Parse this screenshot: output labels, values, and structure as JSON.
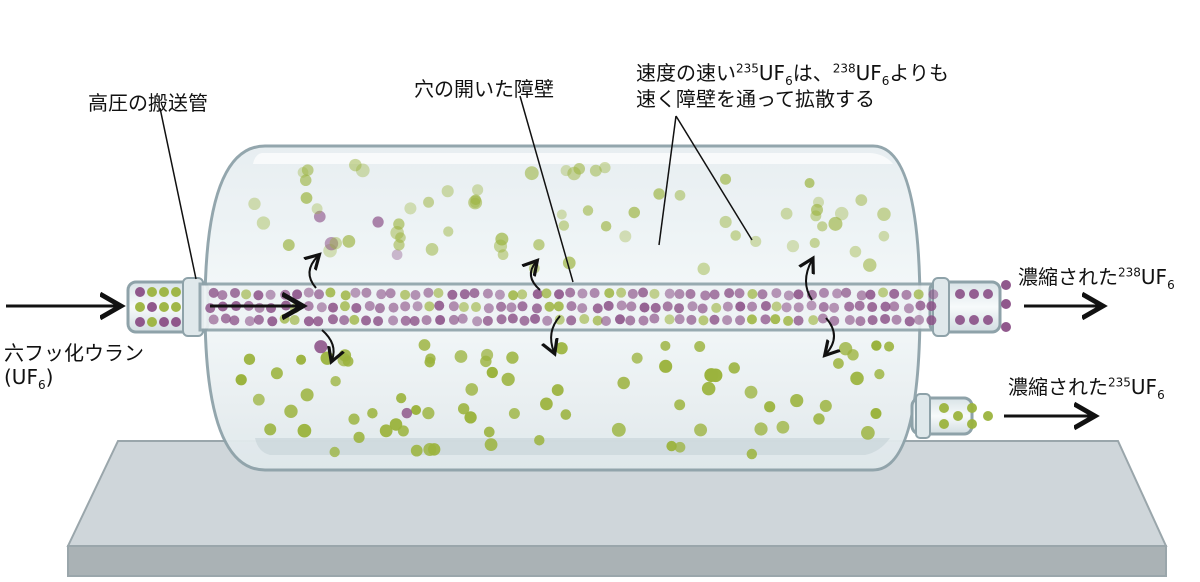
{
  "labels": {
    "feed_pipe": "高圧の搬送管",
    "barrier": "穴の開いた障壁",
    "fast_line1_a": "速度の速い",
    "fast_line1_sup1": "235",
    "fast_line1_b": "UF",
    "fast_line1_sub1": "6",
    "fast_line1_c": "は、",
    "fast_line1_sup2": "238",
    "fast_line1_d": "UF",
    "fast_line1_sub2": "6",
    "fast_line1_e": "よりも",
    "fast_line2": "速く障壁を通って拡散する",
    "feed_name": "六フッ化ウラン",
    "feed_formula_a": "(UF",
    "feed_formula_sub": "6",
    "feed_formula_b": ")",
    "out238_a": "濃縮された",
    "out238_sup": "238",
    "out238_b": "UF",
    "out238_sub": "6",
    "out235_a": "濃縮された",
    "out235_sup": "235",
    "out235_b": "UF",
    "out235_sub": "6"
  },
  "colors": {
    "u238_molecule": "#8a4f86",
    "u235_molecule": "#9bb33d",
    "glass": "#b9c9cf",
    "glass_edge": "#8ea2a9",
    "base_top": "#cfd6da",
    "base_front": "#aab2b5"
  }
}
